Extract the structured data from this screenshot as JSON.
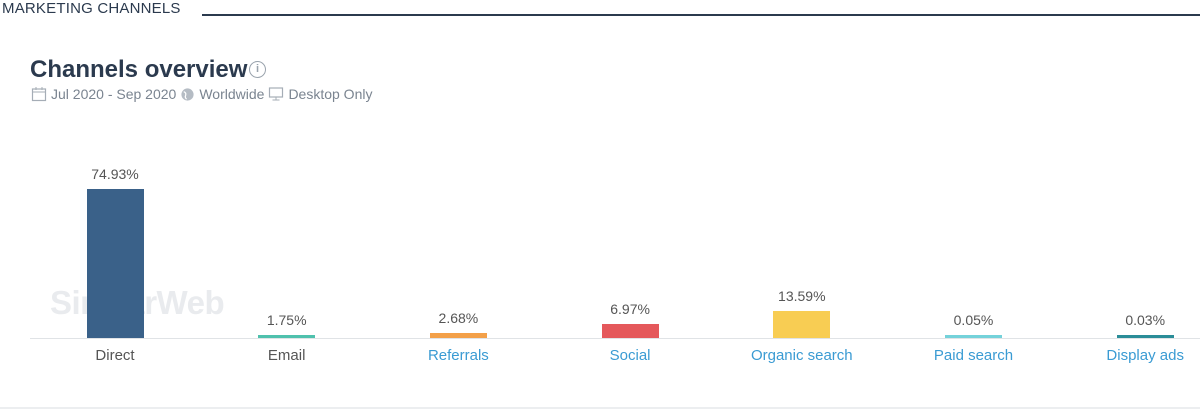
{
  "section": {
    "title": "MARKETING CHANNELS"
  },
  "header": {
    "title": "Channels overview",
    "date_range": "Jul 2020 - Sep 2020",
    "region": "Worldwide",
    "device": "Desktop Only"
  },
  "watermark": "SimilarWeb",
  "chart_data": {
    "type": "bar",
    "title": "Channels overview",
    "categories": [
      "Direct",
      "Email",
      "Referrals",
      "Social",
      "Organic search",
      "Paid search",
      "Display ads"
    ],
    "values": [
      74.93,
      1.75,
      2.68,
      6.97,
      13.59,
      0.05,
      0.03
    ],
    "labels": [
      "74.93%",
      "1.75%",
      "2.68%",
      "6.97%",
      "13.59%",
      "0.05%",
      "0.03%"
    ],
    "colors": [
      "#3a6189",
      "#4fc1ad",
      "#f3a049",
      "#e5585b",
      "#f8cd53",
      "#74d2da",
      "#2a8d98"
    ],
    "category_colors": [
      "#555555",
      "#555555",
      "#3a9bd3",
      "#3a9bd3",
      "#3a9bd3",
      "#3a9bd3",
      "#3a9bd3"
    ],
    "ylim": [
      0,
      75
    ],
    "grid": false
  }
}
